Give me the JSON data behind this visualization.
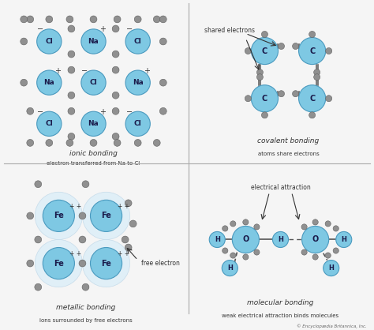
{
  "bg_color": "#f5f5f5",
  "fig_width": 4.74,
  "fig_height": 4.18,
  "dpi": 100,
  "blue_atom_color": "#7ec8e3",
  "blue_atom_edge": "#4a9abf",
  "gray_atom_color": "#909090",
  "gray_atom_edge": "#606060",
  "fe_bg_color": "#ddeef8",
  "text_color": "#333333",
  "copyright": "© Encyclopædia Britannica, Inc.",
  "divider_color": "#aaaaaa",
  "labels": {
    "ionic_title": "ionic bonding",
    "ionic_sub": "electron transferred from Na to Cl",
    "covalent_title": "covalent bonding",
    "covalent_sub": "atoms share electrons",
    "metallic_title": "metallic bonding",
    "metallic_sub": "ions surrounded by free electrons",
    "molecular_title": "molecular bonding",
    "molecular_sub": "weak electrical attraction binds molecules",
    "shared_electrons": "shared electrons",
    "free_electron": "free electron",
    "electrical_attraction": "electrical attraction"
  }
}
